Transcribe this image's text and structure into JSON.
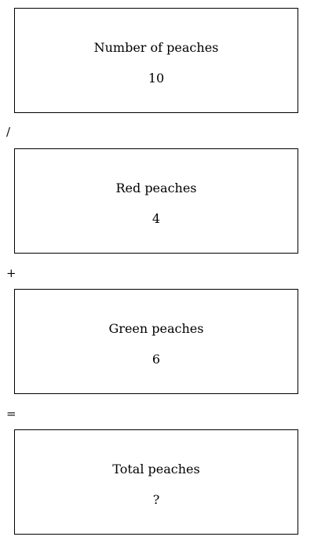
{
  "boxes": [
    {
      "label": "Number of peaches",
      "value": "10"
    },
    {
      "label": "Red peaches",
      "value": "4"
    },
    {
      "label": "Green peaches",
      "value": "6"
    },
    {
      "label": "Total peaches",
      "value": "?"
    }
  ],
  "operators": [
    "/",
    "+",
    "="
  ]
}
